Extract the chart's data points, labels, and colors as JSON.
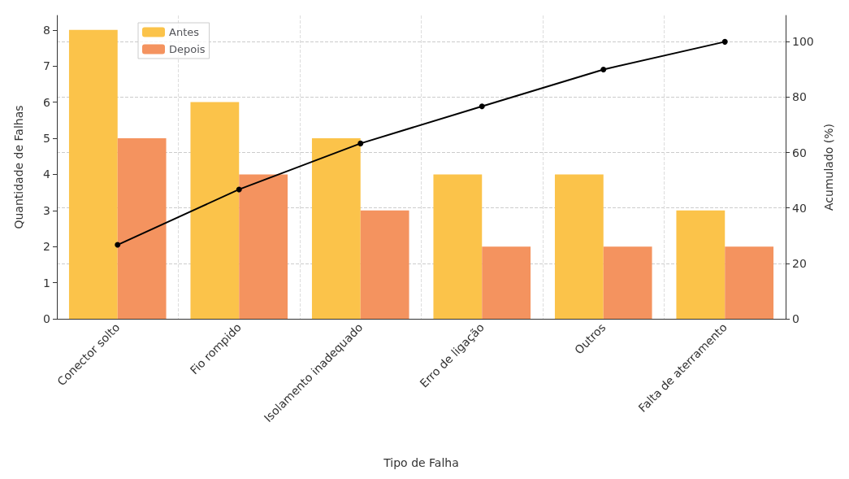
{
  "chart_data": {
    "type": "bar",
    "xlabel": "Tipo de Falha",
    "ylabel": "Quantidade de Falhas",
    "y2label": "Acumulado (%)",
    "categories": [
      "Conector solto",
      "Fio rompido",
      "Isolamento inadequado",
      "Erro de ligação",
      "Outros",
      "Falta de aterramento"
    ],
    "series": [
      {
        "name": "Antes",
        "color": "#fbc34a",
        "values": [
          8,
          6,
          5,
          4,
          4,
          3
        ]
      },
      {
        "name": "Depois",
        "color": "#f4935f",
        "values": [
          5,
          4,
          3,
          2,
          2,
          2
        ]
      },
      {
        "type": "line",
        "axis": "y2",
        "color": "#000000",
        "values": [
          26.7,
          46.7,
          63.3,
          76.7,
          90,
          100
        ]
      }
    ],
    "ylim": [
      0,
      8.4
    ],
    "yticks": [
      0,
      1,
      2,
      3,
      4,
      5,
      6,
      7,
      8
    ],
    "y2lim": [
      0,
      109.5
    ],
    "y2ticks": [
      0,
      20,
      40,
      60,
      80,
      100
    ],
    "grid": true,
    "legend": "top left",
    "marker": "circle",
    "line_style": "solid"
  }
}
